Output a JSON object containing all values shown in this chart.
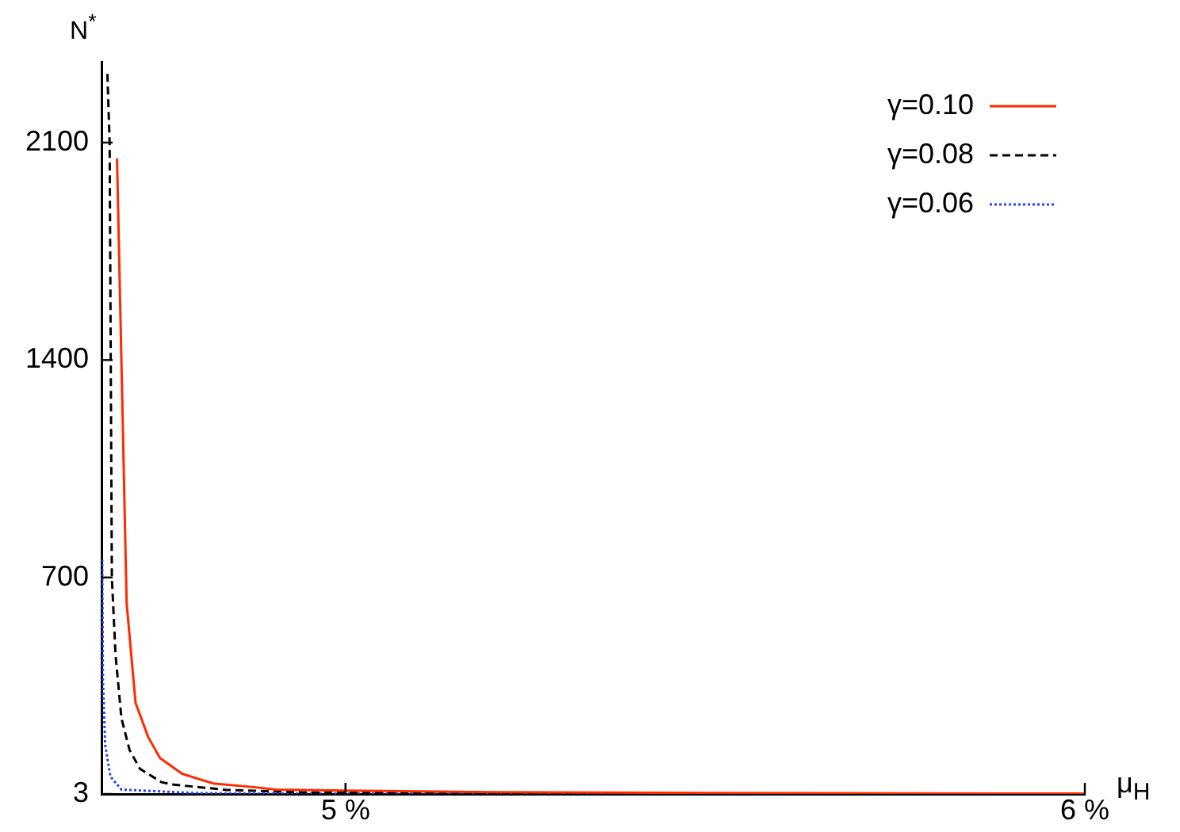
{
  "chart_data": {
    "type": "line",
    "xlabel": "μ$_{H}$",
    "ylabel": "N$^{*}$",
    "xlim": [
      4.67,
      6
    ],
    "ylim": [
      3,
      2360
    ],
    "xticks": [
      {
        "value": 5,
        "label": "5 %"
      },
      {
        "value": 6,
        "label": "6 %"
      }
    ],
    "yticks": [
      3,
      700,
      1400,
      2100
    ],
    "legend": "top right",
    "series": [
      {
        "name": "γ=0.10",
        "color": "#ff2a00",
        "line_style": "solid",
        "x": [
          4.691,
          4.704,
          4.716,
          4.733,
          4.749,
          4.779,
          4.821,
          4.876,
          4.906,
          5.0,
          5.2,
          5.5,
          6.0
        ],
        "values": [
          2049,
          618,
          297,
          187,
          119,
          68,
          37,
          25,
          17,
          14,
          9,
          6,
          4
        ]
      },
      {
        "name": "γ=0.08",
        "color": "#000000",
        "line_style": "dashed",
        "x": [
          4.678,
          4.681,
          4.684,
          4.689,
          4.697,
          4.708,
          4.722,
          4.751,
          4.768,
          4.839,
          4.946,
          5.2,
          5.5,
          6.0
        ],
        "values": [
          2321,
          2100,
          700,
          450,
          246,
          144,
          84,
          41,
          33,
          16,
          8,
          5,
          4,
          4
        ]
      },
      {
        "name": "γ=0.06",
        "color": "#2244ff",
        "line_style": "dotted",
        "x": [
          4.671,
          4.672,
          4.675,
          4.682,
          4.697,
          4.725,
          4.796,
          4.9,
          5.2,
          6.0
        ],
        "values": [
          758,
          365,
          161,
          59,
          17,
          14,
          6,
          4,
          4,
          3
        ]
      }
    ]
  }
}
